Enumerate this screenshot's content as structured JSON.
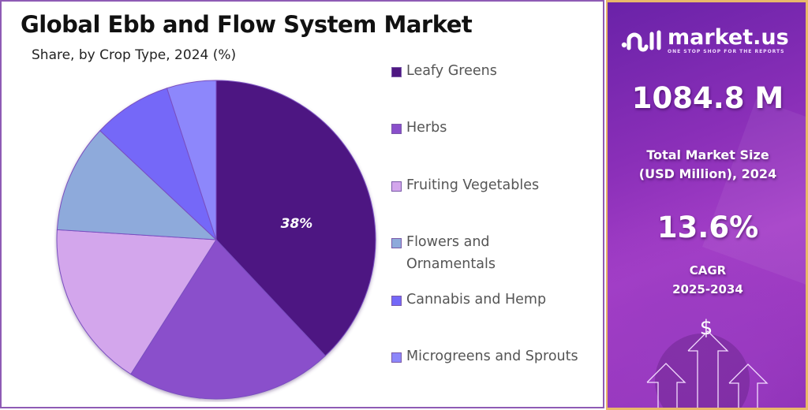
{
  "header": {
    "title": "Global Ebb and Flow System Market",
    "subtitle": "Share, by Crop Type, 2024 (%)"
  },
  "chart_data": {
    "type": "pie",
    "title": "Global Ebb and Flow System Market",
    "subtitle": "Share, by Crop Type, 2024 (%)",
    "categories": [
      "Leafy Greens",
      "Herbs",
      "Fruiting Vegetables",
      "Flowers and Ornamentals",
      "Cannabis and Hemp",
      "Microgreens and Sprouts"
    ],
    "values": [
      38,
      21,
      17,
      11,
      8,
      5
    ],
    "colors": [
      "#4e1782",
      "#8a4fcb",
      "#d3a6ec",
      "#8eaadb",
      "#7468f8",
      "#8d87fb"
    ],
    "data_labels": [
      {
        "category": "Leafy Greens",
        "label": "38%"
      }
    ],
    "start_angle": "12 o'clock, clockwise",
    "legend_position": "right"
  },
  "legend": {
    "items": [
      {
        "label": "Leafy Greens",
        "color": "#4e1782"
      },
      {
        "label": "Herbs",
        "color": "#8a4fcb"
      },
      {
        "label": "Fruiting Vegetables",
        "color": "#d3a6ec"
      },
      {
        "label_line1": "Flowers and",
        "label_line2": "Ornamentals",
        "color": "#8eaadb"
      },
      {
        "label": "Cannabis and Hemp",
        "color": "#7468f8"
      },
      {
        "label": "Microgreens and Sprouts",
        "color": "#8d87fb"
      }
    ]
  },
  "pie_label": "38%",
  "sidebar": {
    "brand": "market.us",
    "tagline": "ONE STOP SHOP FOR THE REPORTS",
    "market_size_value": "1084.8 M",
    "market_size_label_1": "Total Market Size",
    "market_size_label_2": "(USD Million), 2024",
    "cagr_value": "13.6%",
    "cagr_label_1": "CAGR",
    "cagr_label_2": "2025-2034",
    "dollar_symbol": "$"
  }
}
